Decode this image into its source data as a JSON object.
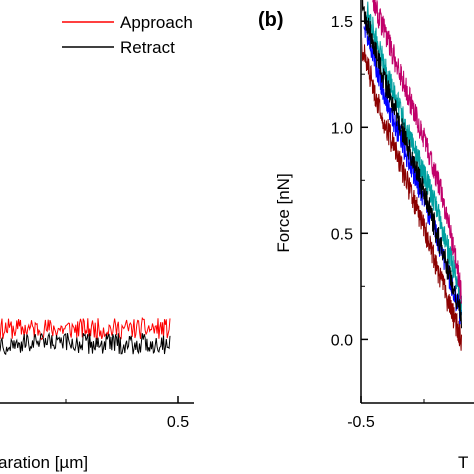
{
  "chart_data": [
    {
      "type": "line",
      "panel_label": "",
      "xlabel": "aration [µm]",
      "ylabel": "",
      "x_ticks": [
        "0.5"
      ],
      "xlim": [
        -0.5,
        0.6
      ],
      "ylim": [
        -0.3,
        1.6
      ],
      "legend": {
        "placement": "top-right",
        "entries": [
          "Approach",
          "Retract"
        ]
      },
      "series": [
        {
          "name": "Approach",
          "color": "#ff0000",
          "x": [
            -0.5,
            0.5
          ],
          "y": [
            0.05,
            0.05
          ]
        },
        {
          "name": "Retract",
          "color": "#000000",
          "x": [
            -0.5,
            0.5
          ],
          "y": [
            -0.02,
            -0.02
          ]
        }
      ]
    },
    {
      "type": "line",
      "panel_label": "(b)",
      "xlabel": "T",
      "ylabel": "Force [nN]",
      "x_ticks": [
        "-0.5"
      ],
      "y_ticks": [
        "0.0",
        "0.5",
        "1.0",
        "1.5"
      ],
      "xlim": [
        -0.65,
        0.0
      ],
      "ylim": [
        -0.3,
        1.6
      ],
      "series": [
        {
          "color": "#8b0000",
          "x": [
            -0.45,
            -0.38,
            -0.3,
            -0.22,
            -0.15,
            -0.1
          ],
          "y": [
            1.45,
            1.1,
            0.8,
            0.5,
            0.2,
            0.0
          ]
        },
        {
          "color": "#0000ff",
          "x": [
            -0.43,
            -0.36,
            -0.28,
            -0.2,
            -0.13,
            -0.1
          ],
          "y": [
            1.5,
            1.15,
            0.85,
            0.55,
            0.25,
            0.1
          ]
        },
        {
          "color": "#00a0a0",
          "x": [
            -0.42,
            -0.34,
            -0.26,
            -0.18,
            -0.12,
            -0.1
          ],
          "y": [
            1.55,
            1.2,
            0.9,
            0.6,
            0.3,
            0.15
          ]
        },
        {
          "color": "#000000",
          "x": [
            -0.44,
            -0.37,
            -0.29,
            -0.21,
            -0.14,
            -0.1
          ],
          "y": [
            1.6,
            1.25,
            0.95,
            0.62,
            0.3,
            0.1
          ]
        },
        {
          "color": "#c0006a",
          "x": [
            -0.4,
            -0.32,
            -0.24,
            -0.17,
            -0.12,
            -0.1
          ],
          "y": [
            1.6,
            1.3,
            1.0,
            0.7,
            0.4,
            0.2
          ]
        }
      ]
    }
  ]
}
